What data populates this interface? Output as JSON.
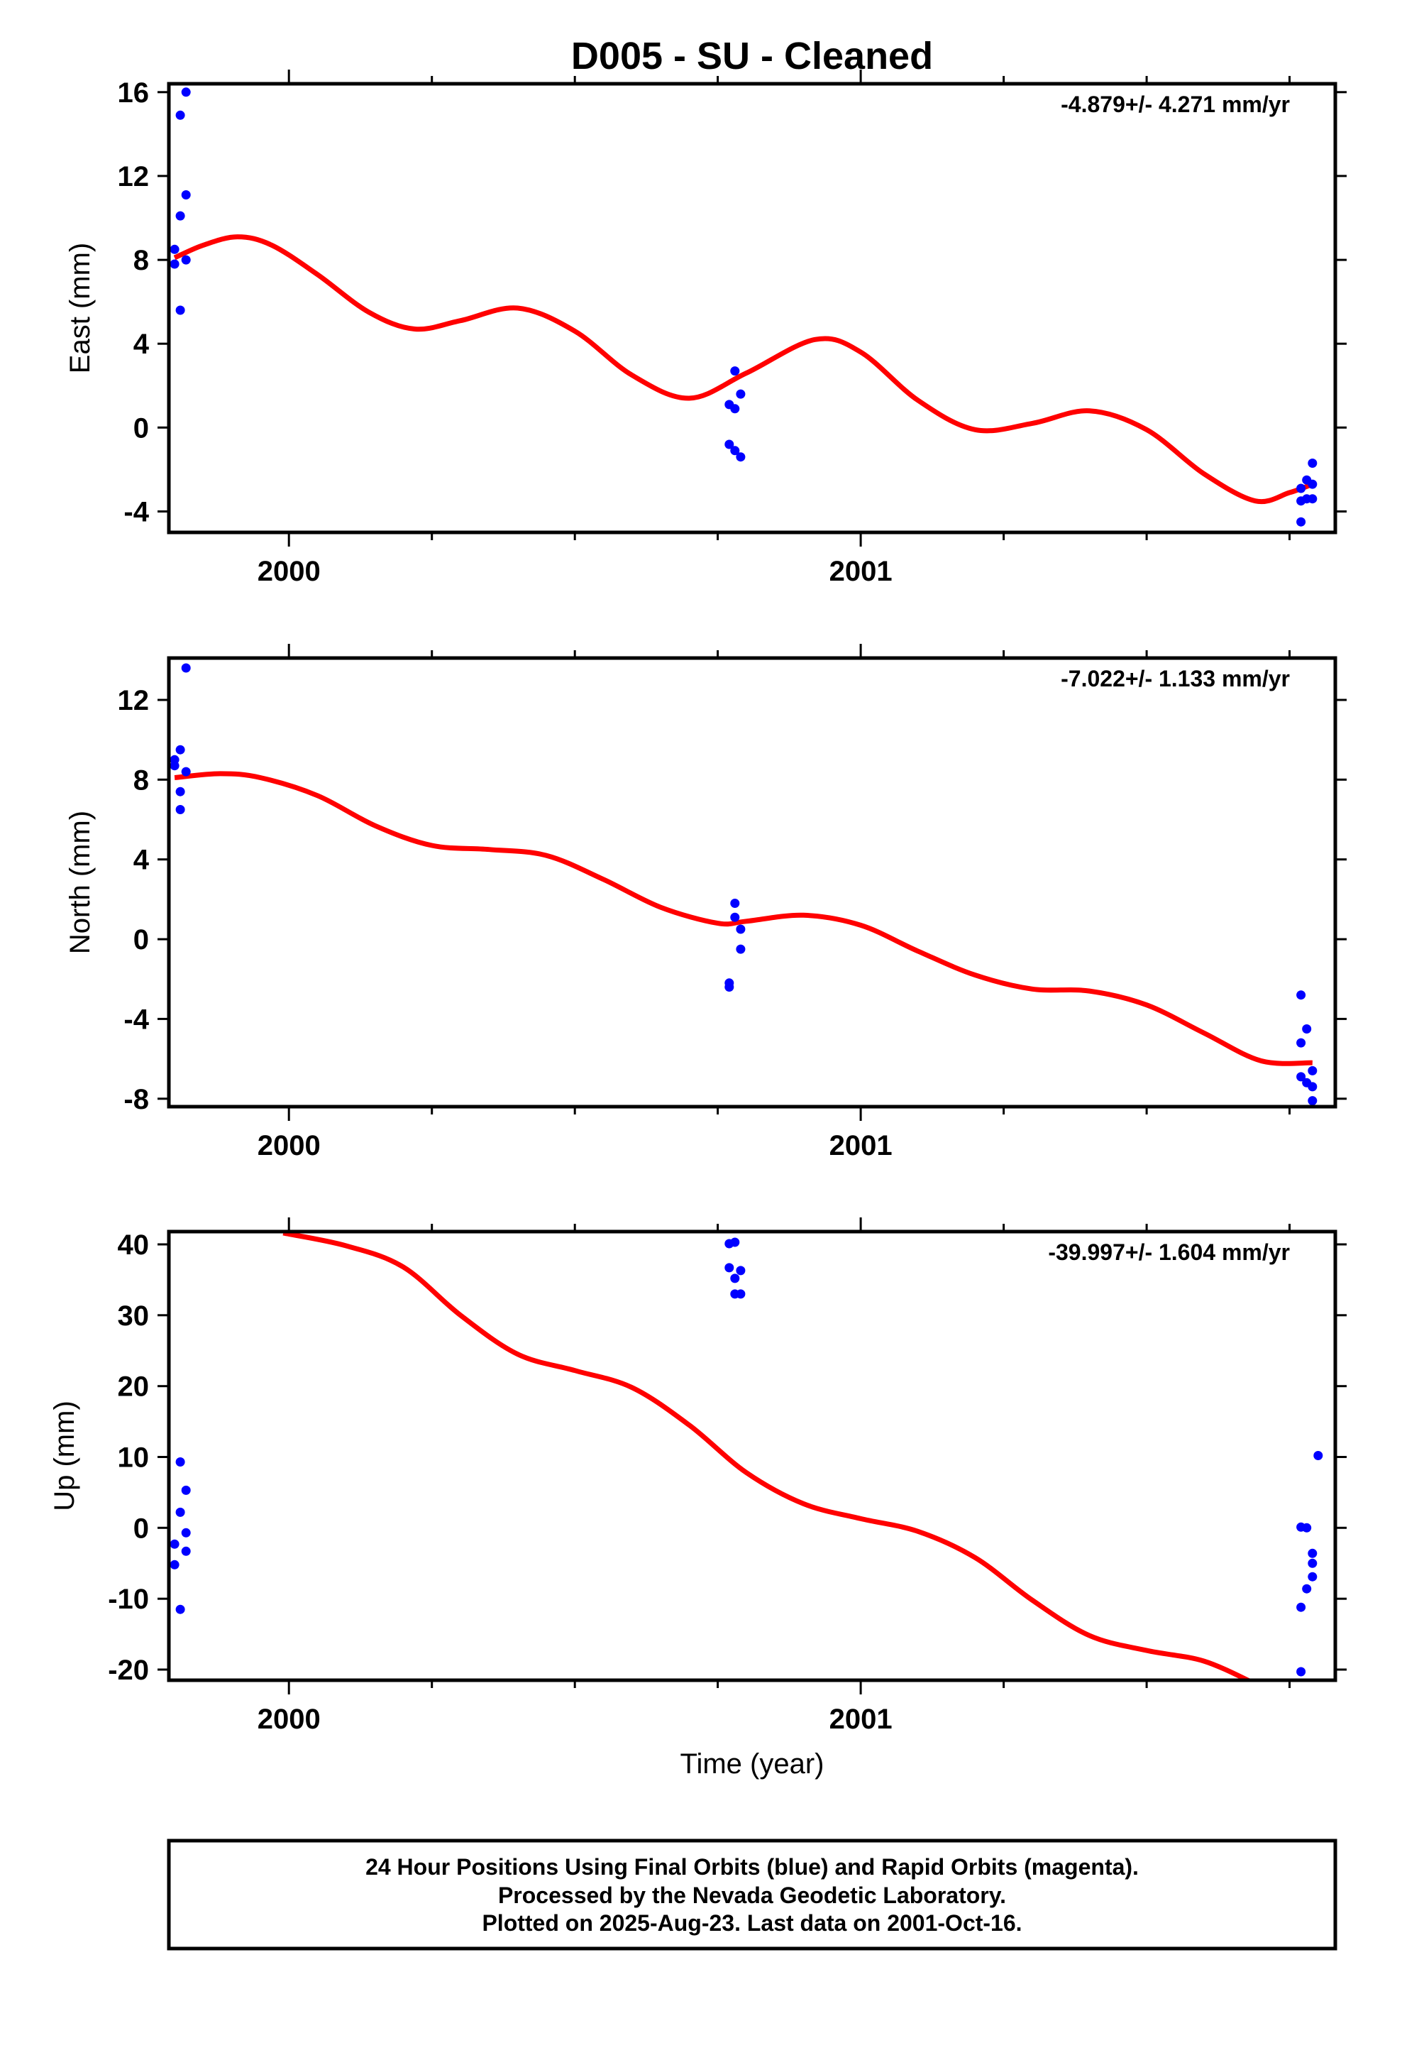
{
  "title": "D005  - SU - Cleaned",
  "xlabel": "Time (year)",
  "footer": {
    "lines": [
      "24 Hour Positions Using Final Orbits (blue) and Rapid Orbits (magenta).",
      "Processed by the Nevada Geodetic Laboratory.",
      "Plotted on 2025-Aug-23. Last data on 2001-Oct-16."
    ]
  },
  "colors": {
    "points": "#0000ff",
    "fit": "#ff0000",
    "frame": "#000000"
  },
  "chart_data": [
    {
      "type": "scatter",
      "ylabel": "East (mm)",
      "rate": "-4.879+/- 4.271 mm/yr",
      "xlim": [
        1999.79,
        2001.83
      ],
      "ylim": [
        -5,
        16.4
      ],
      "xticks": [
        {
          "v": 2000,
          "label": "2000"
        },
        {
          "v": 2001,
          "label": "2001"
        }
      ],
      "xminor": [
        2000.25,
        2000.5,
        2000.75,
        2001.25,
        2001.5,
        2001.75
      ],
      "yticks": [
        -4,
        0,
        4,
        8,
        12,
        16
      ],
      "points": [
        [
          1999.8,
          8.5
        ],
        [
          1999.8,
          7.8
        ],
        [
          1999.81,
          10.1
        ],
        [
          1999.81,
          14.9
        ],
        [
          1999.81,
          5.6
        ],
        [
          1999.82,
          11.1
        ],
        [
          1999.82,
          16.0
        ],
        [
          1999.82,
          8.0
        ],
        [
          2000.77,
          1.1
        ],
        [
          2000.77,
          -0.8
        ],
        [
          2000.78,
          2.7
        ],
        [
          2000.78,
          0.9
        ],
        [
          2000.78,
          -1.1
        ],
        [
          2000.79,
          -1.4
        ],
        [
          2000.79,
          1.6
        ],
        [
          2001.77,
          -2.9
        ],
        [
          2001.77,
          -3.5
        ],
        [
          2001.77,
          -4.5
        ],
        [
          2001.78,
          -3.4
        ],
        [
          2001.78,
          -2.5
        ],
        [
          2001.79,
          -3.4
        ],
        [
          2001.79,
          -2.7
        ],
        [
          2001.79,
          -1.7
        ]
      ],
      "fit": [
        [
          1999.8,
          8.1
        ],
        [
          1999.85,
          8.7
        ],
        [
          1999.91,
          9.1
        ],
        [
          1999.97,
          8.7
        ],
        [
          2000.05,
          7.3
        ],
        [
          2000.14,
          5.5
        ],
        [
          2000.22,
          4.7
        ],
        [
          2000.3,
          5.1
        ],
        [
          2000.4,
          5.7
        ],
        [
          2000.5,
          4.6
        ],
        [
          2000.6,
          2.5
        ],
        [
          2000.7,
          1.4
        ],
        [
          2000.8,
          2.6
        ],
        [
          2000.92,
          4.2
        ],
        [
          2001.0,
          3.6
        ],
        [
          2001.1,
          1.3
        ],
        [
          2001.2,
          -0.1
        ],
        [
          2001.3,
          0.2
        ],
        [
          2001.4,
          0.8
        ],
        [
          2001.5,
          -0.1
        ],
        [
          2001.6,
          -2.2
        ],
        [
          2001.69,
          -3.5
        ],
        [
          2001.75,
          -3.1
        ],
        [
          2001.79,
          -2.7
        ]
      ]
    },
    {
      "type": "scatter",
      "ylabel": "North (mm)",
      "rate": "-7.022+/- 1.133 mm/yr",
      "xlim": [
        1999.79,
        2001.83
      ],
      "ylim": [
        -8.4,
        14.1
      ],
      "xticks": [
        {
          "v": 2000,
          "label": "2000"
        },
        {
          "v": 2001,
          "label": "2001"
        }
      ],
      "xminor": [
        2000.25,
        2000.5,
        2000.75,
        2001.25,
        2001.5,
        2001.75
      ],
      "yticks": [
        -8,
        -4,
        0,
        4,
        8,
        12
      ],
      "points": [
        [
          1999.8,
          8.7
        ],
        [
          1999.8,
          9.0
        ],
        [
          1999.81,
          7.4
        ],
        [
          1999.81,
          6.5
        ],
        [
          1999.81,
          9.5
        ],
        [
          1999.82,
          13.6
        ],
        [
          1999.82,
          8.4
        ],
        [
          2000.77,
          -2.2
        ],
        [
          2000.77,
          -2.4
        ],
        [
          2000.78,
          1.1
        ],
        [
          2000.78,
          1.8
        ],
        [
          2000.79,
          -0.5
        ],
        [
          2000.79,
          0.5
        ],
        [
          2001.77,
          -5.2
        ],
        [
          2001.77,
          -6.9
        ],
        [
          2001.77,
          -2.8
        ],
        [
          2001.78,
          -7.2
        ],
        [
          2001.78,
          -4.5
        ],
        [
          2001.79,
          -6.6
        ],
        [
          2001.79,
          -7.4
        ],
        [
          2001.79,
          -8.1
        ]
      ],
      "fit": [
        [
          1999.8,
          8.1
        ],
        [
          1999.88,
          8.3
        ],
        [
          1999.95,
          8.1
        ],
        [
          2000.05,
          7.2
        ],
        [
          2000.15,
          5.7
        ],
        [
          2000.25,
          4.7
        ],
        [
          2000.35,
          4.5
        ],
        [
          2000.45,
          4.2
        ],
        [
          2000.55,
          3.0
        ],
        [
          2000.65,
          1.6
        ],
        [
          2000.75,
          0.8
        ],
        [
          2000.8,
          0.9
        ],
        [
          2000.9,
          1.2
        ],
        [
          2001.0,
          0.7
        ],
        [
          2001.1,
          -0.6
        ],
        [
          2001.2,
          -1.8
        ],
        [
          2001.3,
          -2.5
        ],
        [
          2001.4,
          -2.6
        ],
        [
          2001.5,
          -3.3
        ],
        [
          2001.6,
          -4.7
        ],
        [
          2001.7,
          -6.1
        ],
        [
          2001.79,
          -6.2
        ]
      ]
    },
    {
      "type": "scatter",
      "ylabel": "Up (mm)",
      "rate": "-39.997+/- 1.604 mm/yr",
      "xlim": [
        1999.79,
        2001.83
      ],
      "ylim": [
        -21.5,
        41.8
      ],
      "xticks": [
        {
          "v": 2000,
          "label": "2000"
        },
        {
          "v": 2001,
          "label": "2001"
        }
      ],
      "xminor": [
        2000.25,
        2000.5,
        2000.75,
        2001.25,
        2001.5,
        2001.75
      ],
      "yticks": [
        -20,
        -10,
        0,
        10,
        20,
        30,
        40
      ],
      "points": [
        [
          1999.8,
          -2.3
        ],
        [
          1999.8,
          -5.2
        ],
        [
          1999.81,
          2.2
        ],
        [
          1999.81,
          9.3
        ],
        [
          1999.81,
          -11.5
        ],
        [
          1999.82,
          -0.7
        ],
        [
          1999.82,
          5.3
        ],
        [
          1999.82,
          -3.3
        ],
        [
          2000.77,
          36.7
        ],
        [
          2000.77,
          40.1
        ],
        [
          2000.78,
          33.0
        ],
        [
          2000.78,
          40.3
        ],
        [
          2000.78,
          35.2
        ],
        [
          2000.79,
          33.0
        ],
        [
          2000.79,
          36.3
        ],
        [
          2001.77,
          -20.3
        ],
        [
          2001.77,
          -11.2
        ],
        [
          2001.77,
          0.1
        ],
        [
          2001.78,
          -8.6
        ],
        [
          2001.78,
          0.0
        ],
        [
          2001.79,
          -3.6
        ],
        [
          2001.79,
          -6.9
        ],
        [
          2001.79,
          -5.0
        ],
        [
          2001.8,
          10.2
        ]
      ],
      "fit": [
        [
          1999.99,
          41.6
        ],
        [
          2000.1,
          39.8
        ],
        [
          2000.2,
          36.8
        ],
        [
          2000.3,
          30.0
        ],
        [
          2000.4,
          24.5
        ],
        [
          2000.5,
          22.2
        ],
        [
          2000.6,
          19.8
        ],
        [
          2000.7,
          14.5
        ],
        [
          2000.8,
          7.8
        ],
        [
          2000.9,
          3.4
        ],
        [
          2001.0,
          1.3
        ],
        [
          2001.1,
          -0.5
        ],
        [
          2001.2,
          -4.2
        ],
        [
          2001.3,
          -10.2
        ],
        [
          2001.4,
          -15.2
        ],
        [
          2001.5,
          -17.3
        ],
        [
          2001.6,
          -18.8
        ],
        [
          2001.69,
          -22.0
        ]
      ]
    }
  ]
}
